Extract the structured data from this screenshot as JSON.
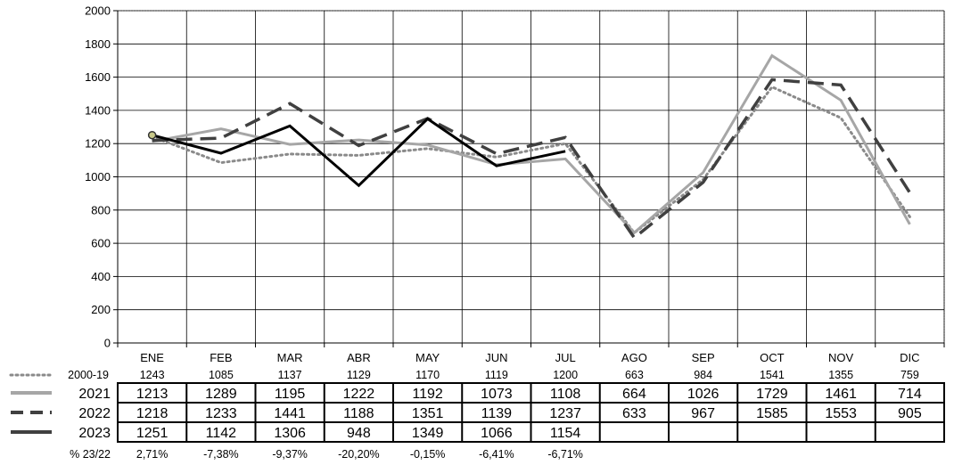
{
  "chart_data": {
    "type": "line",
    "categories": [
      "ENE",
      "FEB",
      "MAR",
      "ABR",
      "MAY",
      "JUN",
      "JUL",
      "AGO",
      "SEP",
      "OCT",
      "NOV",
      "DIC"
    ],
    "ylim": [
      0,
      2000
    ],
    "yticks": [
      0,
      200,
      400,
      600,
      800,
      1000,
      1200,
      1400,
      1600,
      1800,
      2000
    ],
    "grid": true,
    "legend": "table-below",
    "series": [
      {
        "name": "2000-19",
        "style": "dotted",
        "color": "#8a8a8a",
        "values": [
          1243,
          1085,
          1137,
          1129,
          1170,
          1119,
          1200,
          663,
          984,
          1541,
          1355,
          759
        ]
      },
      {
        "name": "2021",
        "style": "solid-light",
        "color": "#a6a6a6",
        "values": [
          1213,
          1289,
          1195,
          1222,
          1192,
          1073,
          1108,
          664,
          1026,
          1729,
          1461,
          714
        ]
      },
      {
        "name": "2022",
        "style": "dashed",
        "color": "#404040",
        "values": [
          1218,
          1233,
          1441,
          1188,
          1351,
          1139,
          1237,
          633,
          967,
          1585,
          1553,
          905
        ]
      },
      {
        "name": "2023",
        "style": "solid-dark",
        "color": "#000000",
        "values": [
          1251,
          1142,
          1306,
          948,
          1349,
          1066,
          1154,
          null,
          null,
          null,
          null,
          null
        ]
      }
    ],
    "change_label": "% 23/22",
    "change_values": [
      "2,71%",
      "-7,38%",
      "-9,37%",
      "-20,20%",
      "-0,15%",
      "-6,41%",
      "-6,71%",
      "",
      "",
      "",
      "",
      ""
    ]
  }
}
